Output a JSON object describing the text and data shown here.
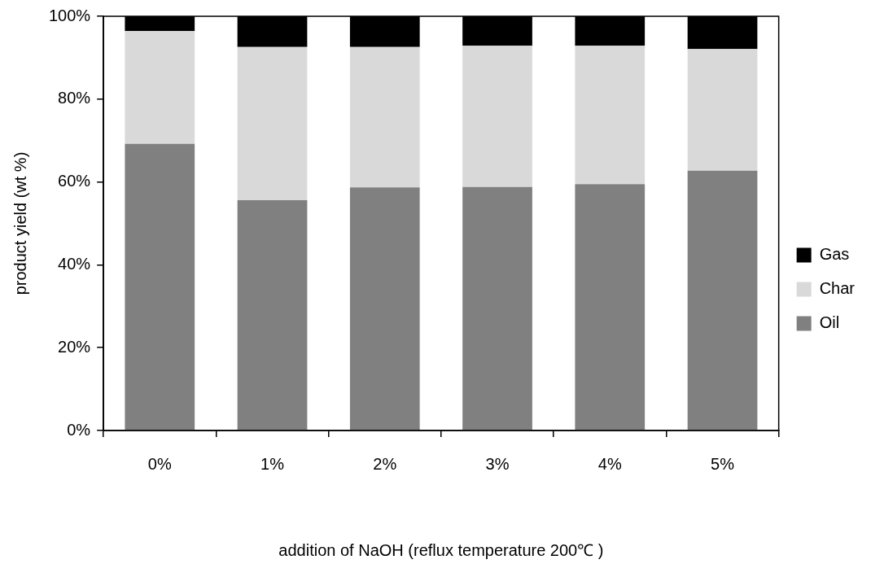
{
  "chart_data": {
    "type": "bar",
    "stacked": true,
    "xlabel": "addition of NaOH (reflux temperature 200℃ )",
    "ylabel": "product yield (wt %)",
    "categories": [
      "0%",
      "1%",
      "2%",
      "3%",
      "4%",
      "5%"
    ],
    "series": [
      {
        "name": "Oil",
        "color": "#808080",
        "values": [
          69.2,
          55.6,
          58.7,
          58.8,
          59.5,
          62.7
        ]
      },
      {
        "name": "Char",
        "color": "#d9d9d9",
        "values": [
          27.2,
          37.0,
          33.9,
          34.1,
          33.4,
          29.4
        ]
      },
      {
        "name": "Gas",
        "color": "#000000",
        "values": [
          3.6,
          7.4,
          7.4,
          7.1,
          7.1,
          7.9
        ]
      }
    ],
    "ylim": [
      0,
      100
    ],
    "yticks": [
      {
        "value": 0,
        "label": "0%"
      },
      {
        "value": 20,
        "label": "20%"
      },
      {
        "value": 40,
        "label": "40%"
      },
      {
        "value": 60,
        "label": "60%"
      },
      {
        "value": 80,
        "label": "80%"
      },
      {
        "value": 100,
        "label": "100%"
      }
    ],
    "legend": "right"
  }
}
